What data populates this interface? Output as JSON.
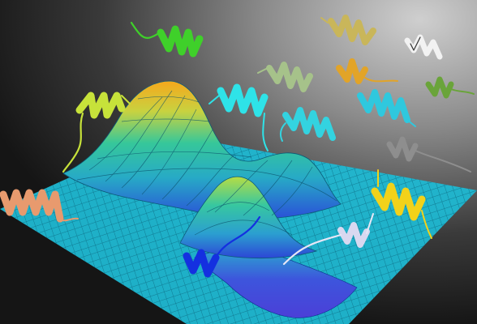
{
  "image": {
    "kind": "scientific-illustration",
    "subject": "energy-landscape",
    "colors": {
      "background_dark": "#141414",
      "background_light": "#c8c8c8",
      "surface_low": "#2b3ad6",
      "surface_mid": "#2fb3c8",
      "surface_high": "#f2b21e",
      "grid_floor": "#22b8d0"
    },
    "helices": [
      {
        "name": "helix-salmon",
        "color": "#e89a6e"
      },
      {
        "name": "helix-lime",
        "color": "#c7e23a"
      },
      {
        "name": "helix-green",
        "color": "#3fd02a"
      },
      {
        "name": "helix-cyan-1",
        "color": "#2ee3e8"
      },
      {
        "name": "helix-cyan-2",
        "color": "#33d3e0"
      },
      {
        "name": "helix-cyan-3",
        "color": "#2fc8de"
      },
      {
        "name": "helix-sage",
        "color": "#a6c28a"
      },
      {
        "name": "helix-khaki",
        "color": "#c9b65a"
      },
      {
        "name": "helix-orange",
        "color": "#e2a428"
      },
      {
        "name": "helix-white",
        "color": "#f2f2f2"
      },
      {
        "name": "helix-olive",
        "color": "#6aa43a"
      },
      {
        "name": "helix-gray",
        "color": "#8e8e8e"
      },
      {
        "name": "helix-yellow",
        "color": "#f2d21a"
      },
      {
        "name": "helix-blue",
        "color": "#1430e0"
      },
      {
        "name": "helix-lavender",
        "color": "#d8d8f0"
      }
    ]
  }
}
